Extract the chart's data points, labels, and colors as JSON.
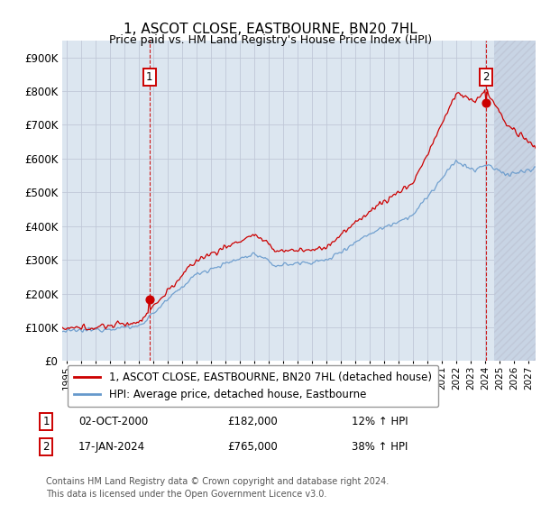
{
  "title": "1, ASCOT CLOSE, EASTBOURNE, BN20 7HL",
  "subtitle": "Price paid vs. HM Land Registry's House Price Index (HPI)",
  "ylabel_ticks": [
    "£0",
    "£100K",
    "£200K",
    "£300K",
    "£400K",
    "£500K",
    "£600K",
    "£700K",
    "£800K",
    "£900K"
  ],
  "ytick_values": [
    0,
    100000,
    200000,
    300000,
    400000,
    500000,
    600000,
    700000,
    800000,
    900000
  ],
  "ylim": [
    0,
    950000
  ],
  "xlim_start": 1994.7,
  "xlim_end": 2027.5,
  "red_color": "#cc0000",
  "blue_color": "#6699cc",
  "vline_color": "#cc0000",
  "grid_color": "#c0c8d8",
  "bg_color": "#dce6f0",
  "hatch_color": "#c8d4e4",
  "point1_x": 2000.75,
  "point1_y": 182000,
  "point2_x": 2024.05,
  "point2_y": 765000,
  "hatch_start": 2024.6,
  "legend_label1": "1, ASCOT CLOSE, EASTBOURNE, BN20 7HL (detached house)",
  "legend_label2": "HPI: Average price, detached house, Eastbourne",
  "annotation1_date": "02-OCT-2000",
  "annotation1_price": "£182,000",
  "annotation1_hpi": "12% ↑ HPI",
  "annotation2_date": "17-JAN-2024",
  "annotation2_price": "£765,000",
  "annotation2_hpi": "38% ↑ HPI",
  "footer": "Contains HM Land Registry data © Crown copyright and database right 2024.\nThis data is licensed under the Open Government Licence v3.0.",
  "xtick_years": [
    1995,
    1996,
    1997,
    1998,
    1999,
    2000,
    2001,
    2002,
    2003,
    2004,
    2005,
    2006,
    2007,
    2008,
    2009,
    2010,
    2011,
    2012,
    2013,
    2014,
    2015,
    2016,
    2017,
    2018,
    2019,
    2020,
    2021,
    2022,
    2023,
    2024,
    2025,
    2026,
    2027
  ],
  "fig_width": 6.0,
  "fig_height": 5.6,
  "dpi": 100
}
